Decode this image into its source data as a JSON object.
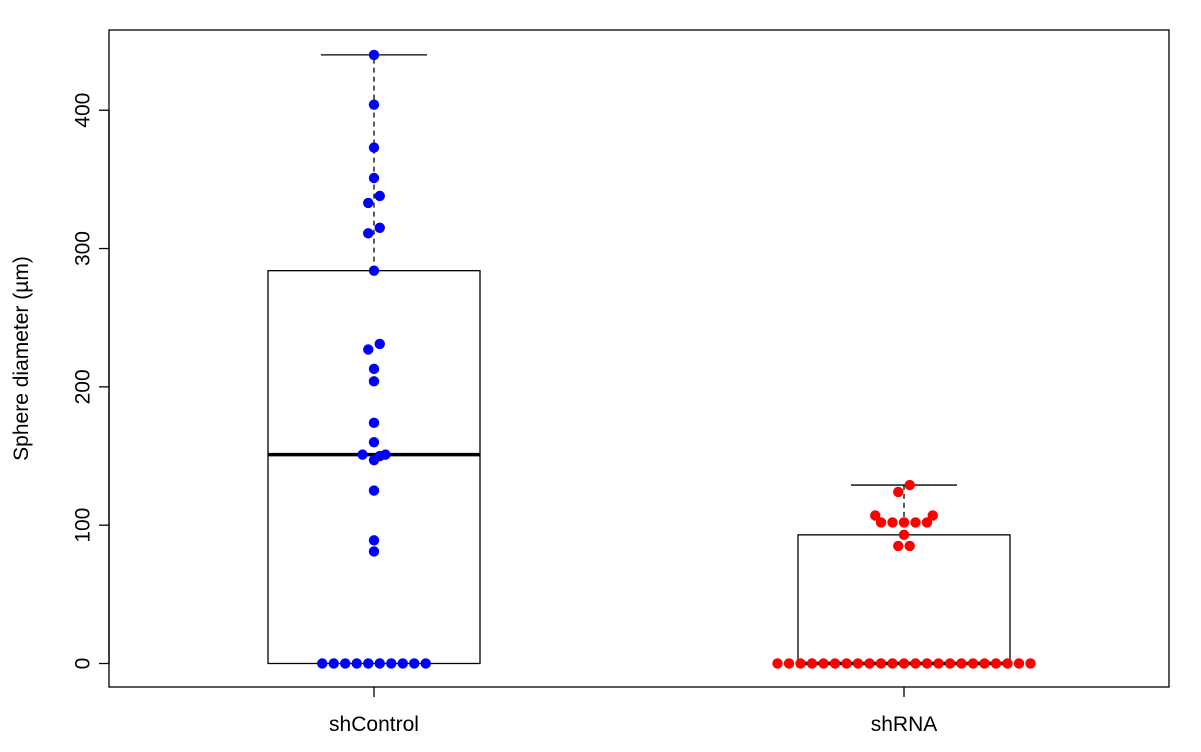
{
  "chart_data": {
    "type": "box",
    "title": "",
    "xlabel": "",
    "ylabel": "Sphere diameter (µm)",
    "ylim": [
      -17,
      458
    ],
    "yticks": [
      0,
      100,
      200,
      300,
      400
    ],
    "grid": false,
    "categories": [
      "shControl",
      "shRNA"
    ],
    "series": [
      {
        "category": "shControl",
        "color": "#0000ff",
        "box": {
          "min": 0,
          "q1": 0,
          "median": 151,
          "q3": 284,
          "max": 440
        },
        "points": [
          {
            "value": 440,
            "offset": 0
          },
          {
            "value": 404,
            "offset": 0
          },
          {
            "value": 373,
            "offset": 0
          },
          {
            "value": 351,
            "offset": 0
          },
          {
            "value": 338,
            "offset": 0.5
          },
          {
            "value": 333,
            "offset": -0.5
          },
          {
            "value": 315,
            "offset": 0.5
          },
          {
            "value": 311,
            "offset": -0.5
          },
          {
            "value": 284,
            "offset": 0
          },
          {
            "value": 231,
            "offset": 0.5
          },
          {
            "value": 227,
            "offset": -0.5
          },
          {
            "value": 213,
            "offset": 0
          },
          {
            "value": 204,
            "offset": 0
          },
          {
            "value": 174,
            "offset": 0
          },
          {
            "value": 160,
            "offset": 0
          },
          {
            "value": 151,
            "offset": -1
          },
          {
            "value": 151,
            "offset": 1
          },
          {
            "value": 150,
            "offset": 0.5
          },
          {
            "value": 147,
            "offset": 0
          },
          {
            "value": 125,
            "offset": 0
          },
          {
            "value": 89,
            "offset": 0
          },
          {
            "value": 81,
            "offset": 0
          },
          {
            "value": 0,
            "offset": -4.5
          },
          {
            "value": 0,
            "offset": -3.5
          },
          {
            "value": 0,
            "offset": -2.5
          },
          {
            "value": 0,
            "offset": -1.5
          },
          {
            "value": 0,
            "offset": -0.5
          },
          {
            "value": 0,
            "offset": 0.5
          },
          {
            "value": 0,
            "offset": 1.5
          },
          {
            "value": 0,
            "offset": 2.5
          },
          {
            "value": 0,
            "offset": 3.5
          },
          {
            "value": 0,
            "offset": 4.5
          }
        ]
      },
      {
        "category": "shRNA",
        "color": "#ff0000",
        "box": {
          "min": 0,
          "q1": 0,
          "median": 0,
          "q3": 93,
          "max": 129
        },
        "points": [
          {
            "value": 129,
            "offset": 0.5
          },
          {
            "value": 124,
            "offset": -0.5
          },
          {
            "value": 107,
            "offset": -2.5
          },
          {
            "value": 107,
            "offset": 2.5
          },
          {
            "value": 102,
            "offset": -2
          },
          {
            "value": 102,
            "offset": -1
          },
          {
            "value": 102,
            "offset": 0
          },
          {
            "value": 102,
            "offset": 1
          },
          {
            "value": 102,
            "offset": 2
          },
          {
            "value": 93,
            "offset": 0
          },
          {
            "value": 85,
            "offset": -0.5
          },
          {
            "value": 85,
            "offset": 0.5
          },
          {
            "value": 0,
            "offset": -11
          },
          {
            "value": 0,
            "offset": -10
          },
          {
            "value": 0,
            "offset": -9
          },
          {
            "value": 0,
            "offset": -8
          },
          {
            "value": 0,
            "offset": -7
          },
          {
            "value": 0,
            "offset": -6
          },
          {
            "value": 0,
            "offset": -5
          },
          {
            "value": 0,
            "offset": -4
          },
          {
            "value": 0,
            "offset": -3
          },
          {
            "value": 0,
            "offset": -2
          },
          {
            "value": 0,
            "offset": -1
          },
          {
            "value": 0,
            "offset": 0
          },
          {
            "value": 0,
            "offset": 1
          },
          {
            "value": 0,
            "offset": 2
          },
          {
            "value": 0,
            "offset": 3
          },
          {
            "value": 0,
            "offset": 4
          },
          {
            "value": 0,
            "offset": 5
          },
          {
            "value": 0,
            "offset": 6
          },
          {
            "value": 0,
            "offset": 7
          },
          {
            "value": 0,
            "offset": 8
          },
          {
            "value": 0,
            "offset": 9
          },
          {
            "value": 0,
            "offset": 10
          },
          {
            "value": 0,
            "offset": 11
          }
        ]
      }
    ]
  }
}
